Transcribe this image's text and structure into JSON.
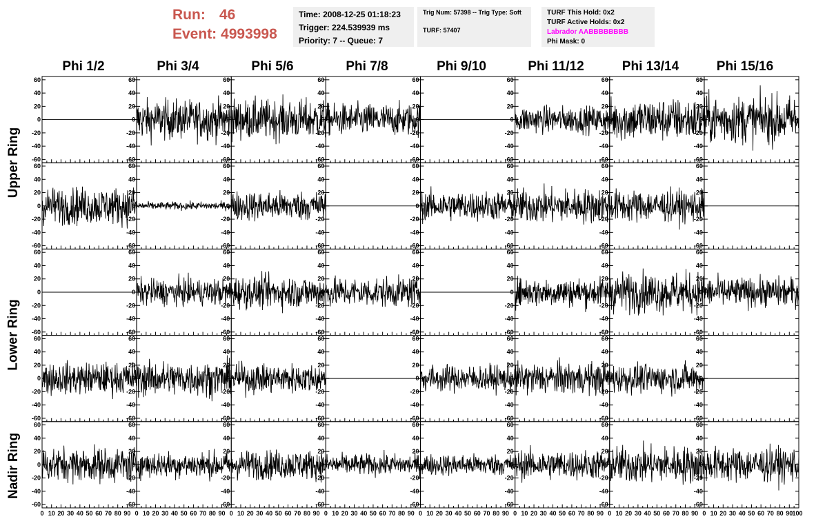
{
  "header": {
    "run_label": "Run:",
    "run_value": "46",
    "event_label": "Event:",
    "event_value": "4993998",
    "time": "Time: 2008-12-25 01:18:23",
    "trigger": "Trigger: 224.539939 ms",
    "priority": "Priority: 7 -- Queue: 7",
    "trig_num": "Trig Num: 57398 -- Trig Type: Soft",
    "turf": "TURF: 57407",
    "turf_hold": "TURF This Hold: 0x2",
    "turf_active": "TURF Active Holds: 0x2",
    "labrador": "Labrador AABBBBBBBB",
    "phi_mask": "Phi Mask: 0"
  },
  "colors": {
    "run_text": "#c9574f",
    "labrador_text": "#ff00ff",
    "info_bg": "#efefef"
  },
  "chart_data": {
    "type": "line",
    "columns": [
      "Phi 1/2",
      "Phi 3/4",
      "Phi 5/6",
      "Phi 7/8",
      "Phi 9/10",
      "Phi 11/12",
      "Phi 13/14",
      "Phi 15/16"
    ],
    "rows": [
      "Upper Ring",
      "Upper Ring",
      "Lower Ring",
      "Lower Ring",
      "Nadir Ring"
    ],
    "row_titles": [
      "Upper Ring",
      "Lower Ring",
      "Nadir Ring"
    ],
    "ylim": [
      -65,
      65
    ],
    "xlim": [
      0,
      100
    ],
    "yticks": [
      -60,
      -40,
      -20,
      0,
      20,
      40,
      60
    ],
    "xticks": [
      0,
      10,
      20,
      30,
      40,
      50,
      60,
      70,
      80,
      90
    ],
    "last_xtick": 100,
    "amplitude": [
      [
        0,
        15,
        15,
        12,
        0,
        10,
        16,
        18
      ],
      [
        14,
        3,
        11,
        0,
        11,
        13,
        12,
        0
      ],
      [
        0,
        10,
        12,
        11,
        0,
        11,
        15,
        11
      ],
      [
        12,
        13,
        11,
        0,
        10,
        12,
        11,
        0
      ],
      [
        13,
        10,
        11,
        8,
        8,
        11,
        14,
        13
      ]
    ]
  }
}
